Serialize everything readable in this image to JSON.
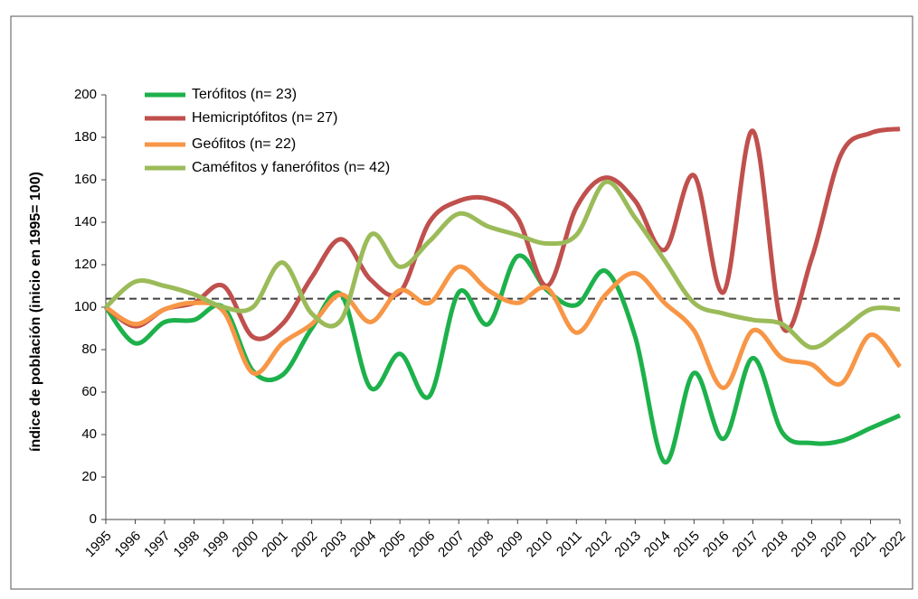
{
  "chart_data": {
    "type": "line",
    "y_label": "índice de población (inicio en 1995= 100)",
    "categories": [
      "1995",
      "1996",
      "1997",
      "1998",
      "1999",
      "2000",
      "2001",
      "2002",
      "2003",
      "2004",
      "2005",
      "2006",
      "2007",
      "2008",
      "2009",
      "2010",
      "2011",
      "2012",
      "2013",
      "2014",
      "2015",
      "2016",
      "2017",
      "2018",
      "2019",
      "2020",
      "2021",
      "2022"
    ],
    "series": [
      {
        "name": "Terófitos (n= 23)",
        "color": "#1db14b",
        "values": [
          100,
          83,
          93,
          94,
          100,
          70,
          68,
          90,
          106,
          62,
          78,
          58,
          107,
          92,
          124,
          108,
          101,
          117,
          86,
          27,
          69,
          38,
          76,
          41,
          36,
          37,
          43,
          49
        ]
      },
      {
        "name": "Hemicriptófitos (n= 27)",
        "color": "#c0504d",
        "values": [
          100,
          91,
          99,
          102,
          110,
          86,
          92,
          114,
          132,
          113,
          107,
          140,
          150,
          151,
          142,
          110,
          147,
          161,
          150,
          127,
          162,
          107,
          183,
          91,
          123,
          172,
          182,
          184
        ]
      },
      {
        "name": "Geófitos (n= 22)",
        "color": "#f79646",
        "values": [
          100,
          92,
          99,
          102,
          98,
          69,
          83,
          92,
          106,
          93,
          108,
          102,
          119,
          108,
          102,
          109,
          88,
          106,
          116,
          102,
          89,
          62,
          89,
          76,
          73,
          64,
          87,
          72
        ]
      },
      {
        "name": "Caméfitos y fanerófitos (n= 42)",
        "color": "#9bbb59",
        "values": [
          100,
          112,
          110,
          106,
          100,
          100,
          121,
          97,
          94,
          134,
          119,
          131,
          144,
          138,
          134,
          130,
          134,
          159,
          142,
          122,
          102,
          97,
          94,
          92,
          81,
          89,
          99,
          99
        ]
      }
    ],
    "reference_line": 104,
    "ylim": [
      0,
      200
    ],
    "yticks": [
      0,
      20,
      40,
      60,
      80,
      100,
      120,
      140,
      160,
      180,
      200
    ],
    "legend": "upper left"
  }
}
